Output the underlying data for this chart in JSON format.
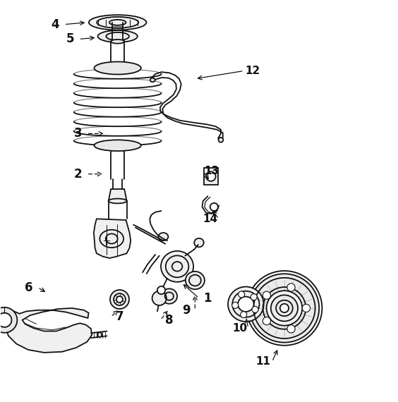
{
  "bg_color": "#ffffff",
  "line_color": "#111111",
  "figsize": [
    5.64,
    5.7
  ],
  "dpi": 100,
  "label_positions": {
    "4": [
      0.145,
      0.06,
      0.23,
      0.052
    ],
    "5": [
      0.182,
      0.098,
      0.248,
      0.1
    ],
    "3": [
      0.198,
      0.34,
      0.268,
      0.335
    ],
    "2": [
      0.205,
      0.435,
      0.258,
      0.432
    ],
    "1": [
      0.52,
      0.74,
      0.49,
      0.71
    ],
    "6": [
      0.075,
      0.718,
      0.13,
      0.738
    ],
    "7": [
      0.305,
      0.79,
      0.305,
      0.768
    ],
    "8": [
      0.418,
      0.795,
      0.418,
      0.768
    ],
    "9": [
      0.46,
      0.77,
      0.46,
      0.748
    ],
    "10": [
      0.6,
      0.81,
      0.62,
      0.78
    ],
    "11": [
      0.66,
      0.9,
      0.68,
      0.865
    ],
    "12": [
      0.63,
      0.175,
      0.595,
      0.195
    ],
    "13": [
      0.53,
      0.43,
      0.553,
      0.44
    ],
    "14": [
      0.53,
      0.545,
      0.553,
      0.52
    ]
  }
}
